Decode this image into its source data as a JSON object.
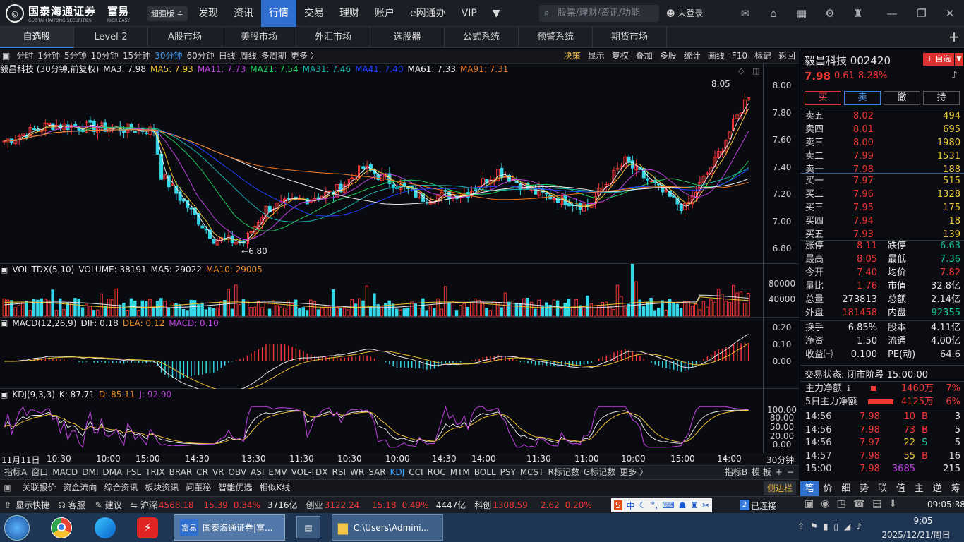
{
  "top": {
    "logo": "国泰海通证券",
    "logo_sub": "GUOTAI HAITONG SECURITIES",
    "brand": "富易",
    "brand_sub": "RICH EASY",
    "edition": "超强版",
    "menu": [
      "发现",
      "资讯",
      "行情",
      "交易",
      "理财",
      "账户",
      "e网通办",
      "VIP"
    ],
    "active_menu": "行情",
    "search_placeholder": "股票/理财/资讯/功能",
    "login": "未登录"
  },
  "tabs": [
    "自选股",
    "Level-2",
    "A股市场",
    "美股市场",
    "外汇市场",
    "选股器",
    "公式系统",
    "预警系统",
    "期货市场"
  ],
  "active_tab": "自选股",
  "periods": [
    "分时",
    "1分钟",
    "5分钟",
    "10分钟",
    "15分钟",
    "30分钟",
    "60分钟",
    "日线",
    "周线",
    "多周期",
    "更多 〉"
  ],
  "active_period": "30分钟",
  "tools": [
    "决策",
    "显示",
    "复权",
    "叠加",
    "多股",
    "统计",
    "画线",
    "F10",
    "标记",
    "返回"
  ],
  "main_legend": {
    "title": "毅昌科技 (30分钟,前复权)",
    "ma": [
      {
        "t": "MA3: 7.98",
        "c": "#e6e6e6"
      },
      {
        "t": "MA5: 7.93",
        "c": "#f0c030"
      },
      {
        "t": "MA11: 7.73",
        "c": "#c040e0"
      },
      {
        "t": "MA21: 7.54",
        "c": "#20d060"
      },
      {
        "t": "MA31: 7.46",
        "c": "#18b8b0"
      },
      {
        "t": "MA41: 7.40",
        "c": "#2040ff"
      },
      {
        "t": "MA61: 7.33",
        "c": "#f0f0f0"
      },
      {
        "t": "MA91: 7.31",
        "c": "#f07820"
      }
    ]
  },
  "price_ticks": [
    "8.00",
    "7.80",
    "7.60",
    "7.40",
    "7.20",
    "7.00",
    "6.80"
  ],
  "price_hi_label": "8.05",
  "price_lo_label": "6.80",
  "vol_legend": {
    "name": "VOL-TDX(5,10)",
    "vol": "VOLUME: 38191",
    "ma5": "MA5: 29022",
    "ma10": "MA10: 29005"
  },
  "vol_ticks": [
    "80000",
    "40000"
  ],
  "macd_legend": {
    "name": "MACD(12,26,9)",
    "dif": "DIF: 0.18",
    "dea": "DEA: 0.12",
    "macd": "MACD: 0.10"
  },
  "macd_ticks": [
    "0.20",
    "0.10",
    "0.00"
  ],
  "kdj_legend": {
    "name": "KDJ(9,3,3)",
    "k": "K: 87.71",
    "d": "D: 85.11",
    "j": "J: 92.90"
  },
  "kdj_ticks": [
    "100.00",
    "80.00",
    "50.00",
    "20.00",
    "0.00"
  ],
  "time_labels": [
    "11月11日",
    "10:30",
    "10:00",
    "15:00",
    "14:30",
    "13:30",
    "11:30",
    "10:30",
    "10:00",
    "14:30",
    "14:00",
    "11:30",
    "11:00",
    "10:00",
    "15:00",
    "14:00"
  ],
  "time_unit": "30分钟",
  "indicators": [
    "指标A",
    "窗口",
    "MACD",
    "DMI",
    "DMA",
    "FSL",
    "TRIX",
    "BRAR",
    "CR",
    "VR",
    "OBV",
    "ASI",
    "EMV",
    "VOL-TDX",
    "RSI",
    "WR",
    "SAR",
    "KDJ",
    "CCI",
    "ROC",
    "MTM",
    "BOLL",
    "PSY",
    "MCST",
    "R标记数",
    "G标记数",
    "更多 〉"
  ],
  "active_indicator": "KDJ",
  "ind_right": [
    "指标B",
    "模 板",
    "+",
    "−"
  ],
  "info_tabs": [
    "关联报价",
    "资金流向",
    "综合资讯",
    "板块资讯",
    "问董秘",
    "智能优选",
    "相似K线"
  ],
  "side_label": "侧边栏",
  "stock": {
    "name": "毅昌科技",
    "code": "002420",
    "add_btn": "+ 自选",
    "price": "7.98",
    "change": "0.61",
    "pct": "8.28%",
    "actions": [
      "买",
      "卖",
      "撤",
      "持"
    ]
  },
  "asks": [
    {
      "l": "卖五",
      "p": "8.02",
      "v": "494"
    },
    {
      "l": "卖四",
      "p": "8.01",
      "v": "695"
    },
    {
      "l": "卖三",
      "p": "8.00",
      "v": "1980"
    },
    {
      "l": "卖二",
      "p": "7.99",
      "v": "1531"
    },
    {
      "l": "卖一",
      "p": "7.98",
      "v": "188"
    }
  ],
  "bids": [
    {
      "l": "买一",
      "p": "7.97",
      "v": "515"
    },
    {
      "l": "买二",
      "p": "7.96",
      "v": "1328"
    },
    {
      "l": "买三",
      "p": "7.95",
      "v": "175"
    },
    {
      "l": "买四",
      "p": "7.94",
      "v": "18"
    },
    {
      "l": "买五",
      "p": "7.93",
      "v": "139"
    }
  ],
  "stats": [
    {
      "a": "涨停",
      "b": "8.11",
      "bc": "red",
      "c": "跌停",
      "d": "6.63",
      "dc": "grn"
    },
    {
      "a": "最高",
      "b": "8.05",
      "bc": "red",
      "c": "最低",
      "d": "7.36",
      "dc": "grn"
    },
    {
      "a": "今开",
      "b": "7.40",
      "bc": "red",
      "c": "均价",
      "d": "7.82",
      "dc": "red"
    },
    {
      "a": "量比",
      "b": "1.76",
      "bc": "red",
      "c": "市值",
      "d": "32.8亿",
      "dc": "wht"
    },
    {
      "a": "总量",
      "b": "273813",
      "bc": "wht",
      "c": "总额",
      "d": "2.14亿",
      "dc": "wht"
    },
    {
      "a": "外盘",
      "b": "181458",
      "bc": "red",
      "c": "内盘",
      "d": "92355",
      "dc": "grn"
    }
  ],
  "stats2": [
    {
      "a": "换手",
      "b": "6.85%",
      "c": "股本",
      "d": "4.11亿"
    },
    {
      "a": "净资",
      "b": "1.50",
      "c": "流通",
      "d": "4.00亿"
    },
    {
      "a": "收益㈢",
      "b": "0.100",
      "c": "PE(动)",
      "d": "64.6"
    }
  ],
  "trade_state": "交易状态: 闭市阶段 15:00:00",
  "flows": [
    {
      "l": "主力净额",
      "v": "1460万",
      "p": "7%"
    },
    {
      "l": "5日主力净额",
      "v": "4125万",
      "p": "6%"
    }
  ],
  "ticks": [
    {
      "t": "14:56",
      "p": "7.98",
      "pc": "red",
      "v": "10",
      "vc": "red",
      "s": "B",
      "sc": "red",
      "n": "3"
    },
    {
      "t": "14:56",
      "p": "7.98",
      "pc": "red",
      "v": "73",
      "vc": "red",
      "s": "B",
      "sc": "red",
      "n": "5"
    },
    {
      "t": "14:56",
      "p": "7.97",
      "pc": "red",
      "v": "22",
      "vc": "yel",
      "s": "S",
      "sc": "grn",
      "n": "5"
    },
    {
      "t": "14:57",
      "p": "7.98",
      "pc": "red",
      "v": "55",
      "vc": "yel",
      "s": "B",
      "sc": "red",
      "n": "16"
    },
    {
      "t": "15:00",
      "p": "7.98",
      "pc": "red",
      "v": "3685",
      "vc": "mag",
      "s": "",
      "sc": "red",
      "n": "215"
    }
  ],
  "rp_tabs": [
    "笔",
    "价",
    "细",
    "势",
    "联",
    "值",
    "主",
    "逆",
    "筹"
  ],
  "status": {
    "shortcut": "显示快捷",
    "service": "客服",
    "suggest": "建议",
    "sh_name": "沪深",
    "sh": "4568.18",
    "sh_chg": "15.39",
    "sh_pct": "0.34%",
    "sh_amt": "3716亿",
    "cy_name": "创业",
    "cy": "3122.24",
    "cy_chg": "15.18",
    "cy_pct": "0.49%",
    "cy_amt": "4447亿",
    "kc_name": "科创",
    "kc": "1308.59",
    "kc_chg": "2.62",
    "kc_pct": "0.20%",
    "conn": "已连接",
    "time": "09:05:38"
  },
  "taskbar": {
    "app1": "国泰海通证券|富...",
    "app2": "C:\\Users\\Admini...",
    "clock_time": "9:05",
    "clock_date": "2025/12/21/周日",
    "app1_icon": "富易"
  },
  "colors": {
    "up": "#f03535",
    "down": "#12c89c",
    "accent": "#2f6fd0"
  }
}
